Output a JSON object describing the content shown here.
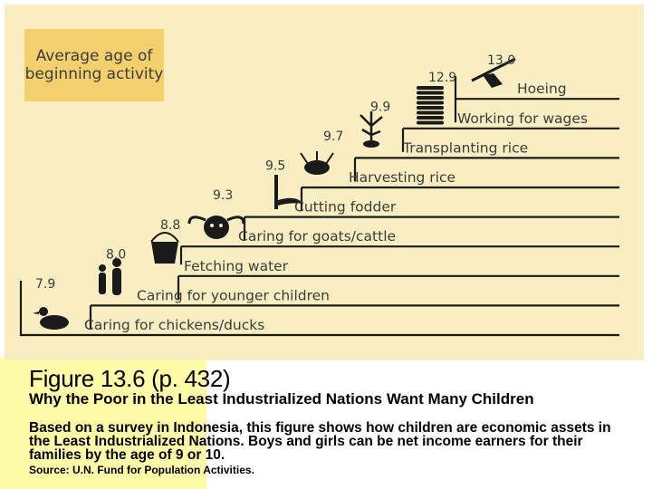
{
  "chart_data": {
    "type": "bar",
    "title": "Average age of beginning activity",
    "categories": [
      "Caring for chickens/ducks",
      "Caring for younger children",
      "Fetching water",
      "Caring for goats/cattle",
      "Cutting fodder",
      "Harvesting rice",
      "Transplanting rice",
      "Working for wages",
      "Hoeing"
    ],
    "values": [
      7.9,
      8.0,
      8.8,
      9.3,
      9.5,
      9.7,
      9.9,
      12.9,
      13.0
    ],
    "value_labels": [
      "7.9",
      "8.0",
      "8.8",
      "9.3",
      "9.5",
      "9.7",
      "9.9",
      "12.9",
      "13.0"
    ],
    "icons": [
      "duck-icon",
      "children-icon",
      "water-bucket-icon",
      "cattle-icon",
      "scythe-icon",
      "rice-bundle-icon",
      "rice-seedling-icon",
      "coin-stack-icon",
      "hoe-icon"
    ],
    "colors": {
      "panel": "#f8eec2",
      "legend_box": "#f3cf6d",
      "lines": "#1a1a1a",
      "text": "#3c3c3c"
    }
  },
  "caption": {
    "title": "Figure 13.6  (p. 432)",
    "subtitle": "Why the Poor in the Least Industrialized Nations Want Many Children",
    "description": "Based on a survey in Indonesia, this figure shows how children are economic assets in the Least Industrialized Nations. Boys and girls can be net income earners for their families by the age of 9 or 10.",
    "source": "Source: U.N. Fund for Population Activities."
  }
}
